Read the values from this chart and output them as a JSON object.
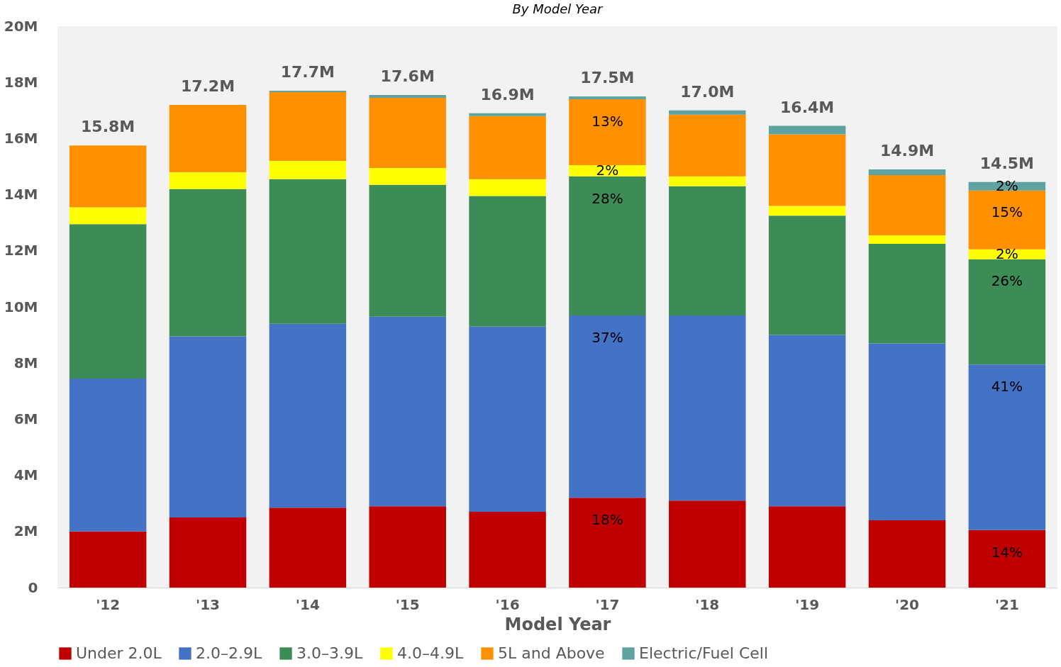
{
  "chart_data": {
    "type": "bar",
    "stacked": true,
    "title": "By Model Year",
    "xlabel": "Model Year",
    "categories": [
      "'12",
      "'13",
      "'14",
      "'15",
      "'16",
      "'17",
      "'18",
      "'19",
      "'20",
      "'21"
    ],
    "series": [
      {
        "name": "Under 2.0L",
        "color": "#c00000",
        "values": [
          2.0,
          2.5,
          2.85,
          2.9,
          2.7,
          3.2,
          3.1,
          2.9,
          2.4,
          2.05
        ]
      },
      {
        "name": "2.0–2.9L",
        "color": "#4472c4",
        "values": [
          5.45,
          6.45,
          6.55,
          6.75,
          6.6,
          6.5,
          6.6,
          6.1,
          6.3,
          5.9
        ]
      },
      {
        "name": "3.0–3.9L",
        "color": "#3d8b57",
        "values": [
          5.5,
          5.25,
          5.15,
          4.7,
          4.65,
          4.95,
          4.6,
          4.25,
          3.55,
          3.75
        ]
      },
      {
        "name": "4.0–4.9L",
        "color": "#ffff00",
        "values": [
          0.6,
          0.6,
          0.65,
          0.6,
          0.6,
          0.4,
          0.35,
          0.35,
          0.3,
          0.35
        ]
      },
      {
        "name": "5L and Above",
        "color": "#ff9000",
        "values": [
          2.2,
          2.4,
          2.45,
          2.5,
          2.25,
          2.35,
          2.2,
          2.55,
          2.15,
          2.1
        ]
      },
      {
        "name": "Electric/Fuel Cell",
        "color": "#5fa3a0",
        "values": [
          0,
          0,
          0.05,
          0.1,
          0.1,
          0.1,
          0.15,
          0.3,
          0.2,
          0.3
        ]
      }
    ],
    "annotations": [
      {
        "text": "18%",
        "x": "'17",
        "y": 3.2
      },
      {
        "text": "37%",
        "x": "'17",
        "y": 9.7
      },
      {
        "text": "28%",
        "x": "'17",
        "y": 14.65
      },
      {
        "text": "2%",
        "x": "'17",
        "y": 15.05
      },
      {
        "text": "13%",
        "x": "'17",
        "y": 17.4
      },
      {
        "text": "14%",
        "x": "'21",
        "y": 2.05
      },
      {
        "text": "41%",
        "x": "'21",
        "y": 7.95
      },
      {
        "text": "26%",
        "x": "'21",
        "y": 11.7
      },
      {
        "text": "2%",
        "x": "'21",
        "y": 12.05
      },
      {
        "text": "15%",
        "x": "'21",
        "y": 14.15
      },
      {
        "text": "2%",
        "x": "'21",
        "y": 14.45
      }
    ],
    "totals": [
      "15.8M",
      "17.2M",
      "17.7M",
      "17.6M",
      "16.9M",
      "17.5M",
      "17.0M",
      "16.4M",
      "14.9M",
      "14.5M"
    ],
    "ylim": [
      0,
      20
    ],
    "yticks": [
      0,
      {
        "value": 2,
        "label": "2M"
      },
      {
        "value": 4,
        "label": "4M"
      },
      {
        "value": 6,
        "label": "6M"
      },
      {
        "value": 8,
        "label": "8M"
      },
      {
        "value": 10,
        "label": "10M"
      },
      {
        "value": 12,
        "label": "12M"
      },
      {
        "value": 14,
        "label": "14M"
      },
      {
        "value": 16,
        "label": "16M"
      },
      {
        "value": 18,
        "label": "18M"
      },
      {
        "value": 20,
        "label": "20M"
      }
    ],
    "grid": false,
    "legend": "bottom"
  }
}
